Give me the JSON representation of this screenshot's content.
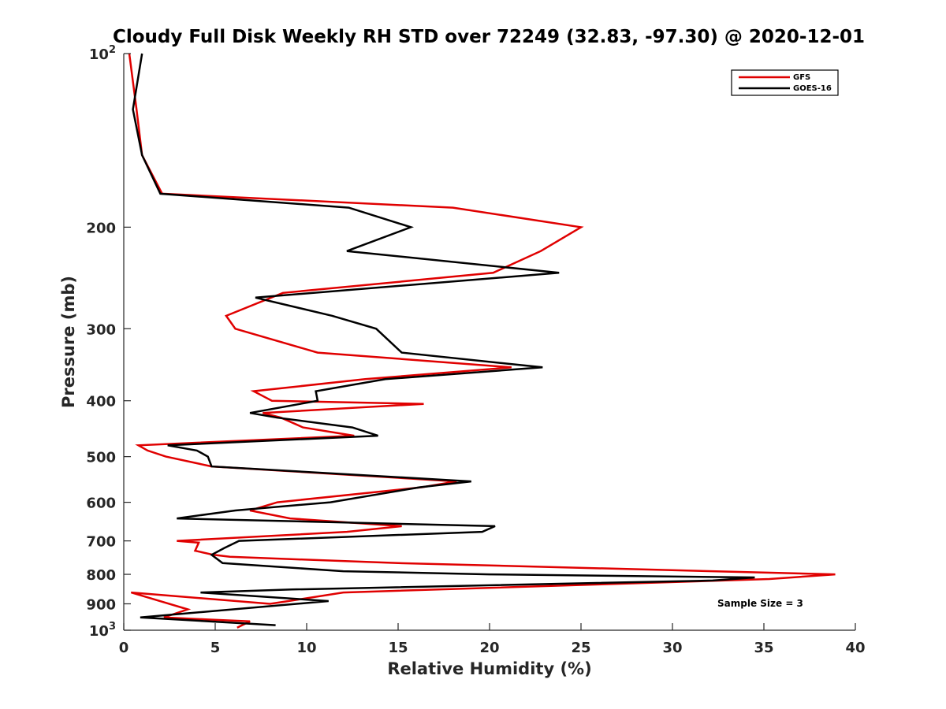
{
  "chart_data": {
    "type": "line",
    "title": "Cloudy Full Disk Weekly RH STD over 72249 (32.83, -97.30) @ 2020-12-01",
    "xlabel": "Relative Humidity (%)",
    "ylabel": "Pressure (mb)",
    "xlim": [
      0,
      40
    ],
    "ylim": [
      100,
      1000
    ],
    "y_scale": "log",
    "y_reversed": true,
    "xticks": [
      0,
      5,
      10,
      15,
      20,
      25,
      30,
      35,
      40
    ],
    "yticks": [
      {
        "value": 100,
        "base": "10",
        "exp": "2"
      },
      {
        "value": 200,
        "label": "200"
      },
      {
        "value": 300,
        "label": "300"
      },
      {
        "value": 400,
        "label": "400"
      },
      {
        "value": 500,
        "label": "500"
      },
      {
        "value": 600,
        "label": "600"
      },
      {
        "value": 700,
        "label": "700"
      },
      {
        "value": 800,
        "label": "800"
      },
      {
        "value": 900,
        "label": "900"
      },
      {
        "value": 1000,
        "base": "10",
        "exp": "3"
      }
    ],
    "legend_position": "top-right",
    "annotation": "Sample Size = 3",
    "series": [
      {
        "name": "GFS",
        "color": "#e00000",
        "points": [
          [
            0.3,
            100
          ],
          [
            0.7,
            125
          ],
          [
            1.0,
            150
          ],
          [
            2.1,
            175
          ],
          [
            18.0,
            185
          ],
          [
            25.0,
            200
          ],
          [
            22.8,
            220
          ],
          [
            20.2,
            240
          ],
          [
            8.7,
            260
          ],
          [
            5.6,
            285
          ],
          [
            6.1,
            300
          ],
          [
            10.6,
            330
          ],
          [
            21.2,
            350
          ],
          [
            13.2,
            367
          ],
          [
            7.1,
            385
          ],
          [
            8.1,
            400
          ],
          [
            16.4,
            405
          ],
          [
            7.6,
            420
          ],
          [
            8.6,
            428
          ],
          [
            9.8,
            445
          ],
          [
            12.6,
            460
          ],
          [
            0.8,
            478
          ],
          [
            1.3,
            488
          ],
          [
            2.3,
            500
          ],
          [
            4.8,
            520
          ],
          [
            18.2,
            552
          ],
          [
            16.3,
            565
          ],
          [
            8.4,
            600
          ],
          [
            6.9,
            620
          ],
          [
            9.1,
            640
          ],
          [
            15.2,
            660
          ],
          [
            12.2,
            675
          ],
          [
            2.9,
            700
          ],
          [
            4.1,
            705
          ],
          [
            3.9,
            728
          ],
          [
            4.9,
            740
          ],
          [
            5.8,
            746
          ],
          [
            15.0,
            765
          ],
          [
            38.9,
            800
          ],
          [
            35.3,
            815
          ],
          [
            12.0,
            860
          ],
          [
            9.0,
            890
          ],
          [
            8.0,
            900
          ],
          [
            0.4,
            860
          ],
          [
            3.5,
            920
          ],
          [
            2.2,
            950
          ],
          [
            4.6,
            958
          ],
          [
            6.9,
            965
          ],
          [
            6.2,
            990
          ]
        ]
      },
      {
        "name": "GOES-16",
        "color": "#000000",
        "points": [
          [
            1.0,
            100
          ],
          [
            0.5,
            125
          ],
          [
            1.0,
            150
          ],
          [
            2.0,
            175
          ],
          [
            12.3,
            185
          ],
          [
            15.7,
            200
          ],
          [
            12.2,
            220
          ],
          [
            23.8,
            240
          ],
          [
            7.2,
            265
          ],
          [
            11.4,
            285
          ],
          [
            13.8,
            300
          ],
          [
            15.2,
            330
          ],
          [
            22.9,
            350
          ],
          [
            14.3,
            367
          ],
          [
            10.5,
            385
          ],
          [
            10.6,
            400
          ],
          [
            6.9,
            420
          ],
          [
            8.4,
            428
          ],
          [
            12.5,
            445
          ],
          [
            13.9,
            460
          ],
          [
            2.4,
            478
          ],
          [
            4.0,
            488
          ],
          [
            4.6,
            500
          ],
          [
            4.8,
            520
          ],
          [
            19.0,
            552
          ],
          [
            16.2,
            565
          ],
          [
            11.3,
            600
          ],
          [
            6.1,
            620
          ],
          [
            2.9,
            640
          ],
          [
            20.3,
            660
          ],
          [
            19.6,
            675
          ],
          [
            6.3,
            700
          ],
          [
            5.5,
            720
          ],
          [
            4.8,
            740
          ],
          [
            5.4,
            765
          ],
          [
            12.0,
            790
          ],
          [
            20.0,
            800
          ],
          [
            34.5,
            810
          ],
          [
            32.2,
            820
          ],
          [
            9.2,
            850
          ],
          [
            4.2,
            860
          ],
          [
            11.2,
            890
          ],
          [
            0.9,
            950
          ],
          [
            8.3,
            980
          ]
        ]
      }
    ]
  }
}
